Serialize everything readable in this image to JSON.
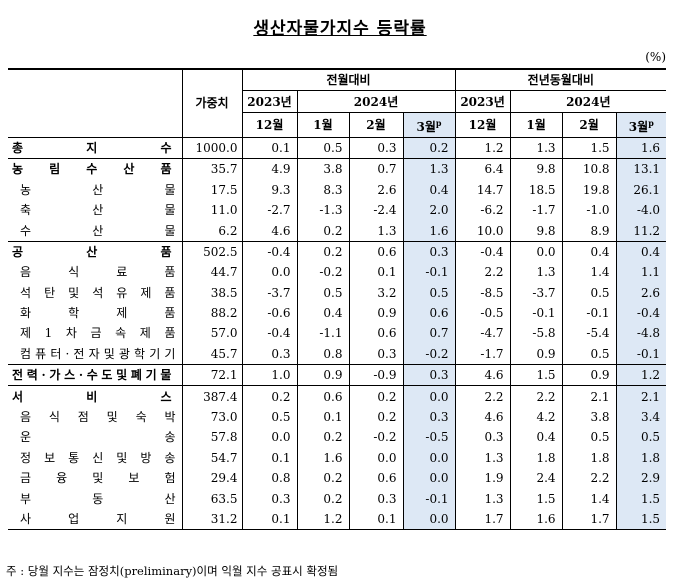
{
  "title": "생산자물가지수 등락률",
  "unit": "(%)",
  "header": {
    "weight": "가중치",
    "group_mom": "전월대비",
    "group_yoy": "전년동월대비",
    "y2023": "2023년",
    "y2024": "2024년",
    "months": [
      "12월",
      "1월",
      "2월",
      "3월"
    ],
    "prelim_mark": "p"
  },
  "rows": [
    {
      "label": "총 지 수",
      "type": "main",
      "weight": "1000.0",
      "mom": [
        "0.1",
        "0.5",
        "0.3",
        "0.2"
      ],
      "yoy": [
        "1.2",
        "1.3",
        "1.5",
        "1.6"
      ]
    },
    {
      "label": "농 림 수 산 품",
      "type": "main",
      "weight": "35.7",
      "mom": [
        "4.9",
        "3.8",
        "0.7",
        "1.3"
      ],
      "yoy": [
        "6.4",
        "9.8",
        "10.8",
        "13.1"
      ]
    },
    {
      "label": "농 산 물",
      "type": "sub",
      "weight": "17.5",
      "mom": [
        "9.3",
        "8.3",
        "2.6",
        "0.4"
      ],
      "yoy": [
        "14.7",
        "18.5",
        "19.8",
        "26.1"
      ]
    },
    {
      "label": "축 산 물",
      "type": "sub",
      "weight": "11.0",
      "mom": [
        "-2.7",
        "-1.3",
        "-2.4",
        "2.0"
      ],
      "yoy": [
        "-6.2",
        "-1.7",
        "-1.0",
        "-4.0"
      ]
    },
    {
      "label": "수 산 물",
      "type": "sub",
      "weight": "6.2",
      "mom": [
        "4.6",
        "0.2",
        "1.3",
        "1.6"
      ],
      "yoy": [
        "10.0",
        "9.8",
        "8.9",
        "11.2"
      ]
    },
    {
      "label": "공 산 품",
      "type": "main",
      "weight": "502.5",
      "mom": [
        "-0.4",
        "0.2",
        "0.6",
        "0.3"
      ],
      "yoy": [
        "-0.4",
        "0.0",
        "0.4",
        "0.4"
      ]
    },
    {
      "label": "음 식 료 품",
      "type": "sub",
      "weight": "44.7",
      "mom": [
        "0.0",
        "-0.2",
        "0.1",
        "-0.1"
      ],
      "yoy": [
        "2.2",
        "1.3",
        "1.4",
        "1.1"
      ]
    },
    {
      "label": "석탄및석유제품",
      "type": "sub",
      "weight": "38.5",
      "mom": [
        "-3.7",
        "0.5",
        "3.2",
        "0.5"
      ],
      "yoy": [
        "-8.5",
        "-3.7",
        "0.5",
        "2.6"
      ]
    },
    {
      "label": "화 학 제 품",
      "type": "sub",
      "weight": "88.2",
      "mom": [
        "-0.6",
        "0.4",
        "0.9",
        "0.6"
      ],
      "yoy": [
        "-0.5",
        "-0.1",
        "-0.1",
        "-0.4"
      ]
    },
    {
      "label": "제1차금속제품",
      "type": "sub",
      "weight": "57.0",
      "mom": [
        "-0.4",
        "-1.1",
        "0.6",
        "0.7"
      ],
      "yoy": [
        "-4.7",
        "-5.8",
        "-5.4",
        "-4.8"
      ]
    },
    {
      "label": "컴퓨터·전자및광학기기",
      "type": "sub",
      "weight": "45.7",
      "mom": [
        "0.3",
        "0.8",
        "0.3",
        "-0.2"
      ],
      "yoy": [
        "-1.7",
        "0.9",
        "0.5",
        "-0.1"
      ]
    },
    {
      "label": "전력·가스·수도및폐기물",
      "type": "main",
      "weight": "72.1",
      "mom": [
        "1.0",
        "0.9",
        "-0.9",
        "0.3"
      ],
      "yoy": [
        "4.6",
        "1.5",
        "0.9",
        "1.2"
      ]
    },
    {
      "label": "서 비 스",
      "type": "main",
      "weight": "387.4",
      "mom": [
        "0.2",
        "0.6",
        "0.2",
        "0.0"
      ],
      "yoy": [
        "2.2",
        "2.2",
        "2.1",
        "2.1"
      ]
    },
    {
      "label": "음식점및숙박",
      "type": "sub",
      "weight": "73.0",
      "mom": [
        "0.5",
        "0.1",
        "0.2",
        "0.3"
      ],
      "yoy": [
        "4.6",
        "4.2",
        "3.8",
        "3.4"
      ]
    },
    {
      "label": "운 송",
      "type": "sub",
      "weight": "57.8",
      "mom": [
        "0.0",
        "0.2",
        "-0.2",
        "-0.5"
      ],
      "yoy": [
        "0.3",
        "0.4",
        "0.5",
        "0.5"
      ]
    },
    {
      "label": "정보통신및방송",
      "type": "sub",
      "weight": "54.7",
      "mom": [
        "0.1",
        "1.6",
        "0.0",
        "0.0"
      ],
      "yoy": [
        "1.3",
        "1.8",
        "1.8",
        "1.8"
      ]
    },
    {
      "label": "금 융 및 보 험",
      "type": "sub",
      "weight": "29.4",
      "mom": [
        "0.8",
        "0.2",
        "0.6",
        "0.0"
      ],
      "yoy": [
        "1.9",
        "2.4",
        "2.2",
        "2.9"
      ]
    },
    {
      "label": "부 동 산",
      "type": "sub",
      "weight": "63.5",
      "mom": [
        "0.3",
        "0.2",
        "0.3",
        "-0.1"
      ],
      "yoy": [
        "1.3",
        "1.5",
        "1.4",
        "1.5"
      ]
    },
    {
      "label": "사 업 지 원",
      "type": "sub",
      "weight": "31.2",
      "mom": [
        "0.1",
        "1.2",
        "0.1",
        "0.0"
      ],
      "yoy": [
        "1.7",
        "1.6",
        "1.7",
        "1.5"
      ]
    }
  ],
  "footnote": "주 : 당월 지수는 잠정치(preliminary)이며 익월 지수 공표시 확정됨",
  "colors": {
    "highlight": "#dde8f5"
  }
}
